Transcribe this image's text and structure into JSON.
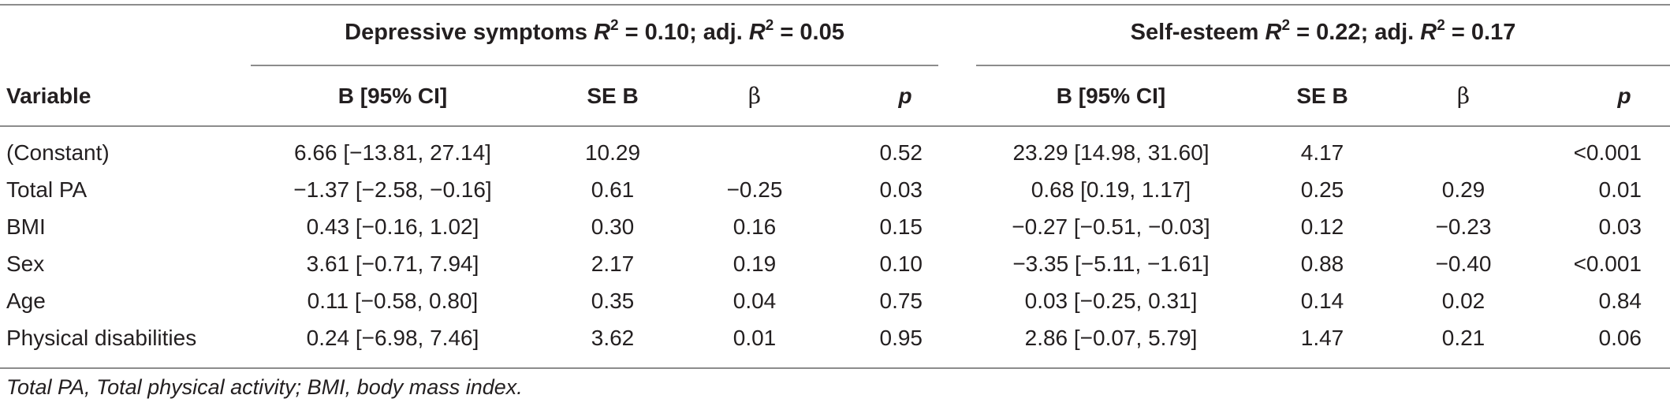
{
  "groups": {
    "depressive": {
      "label": "Depressive symptoms",
      "r2_symbol": "R",
      "r2_exp": "2",
      "r2_value": " = 0.10; adj. ",
      "adj_symbol": "R",
      "adj_exp": "2",
      "adj_value": " = 0.05"
    },
    "selfesteem": {
      "label": "Self-esteem",
      "r2_symbol": "R",
      "r2_exp": "2",
      "r2_value": " = 0.22; adj. ",
      "adj_symbol": "R",
      "adj_exp": "2",
      "adj_value": " = 0.17"
    }
  },
  "columns": {
    "variable": "Variable",
    "b_ci": "B [95% CI]",
    "se_b": "SE B",
    "beta": "β",
    "p": "p"
  },
  "rows": [
    {
      "variable": "(Constant)",
      "d_b": "6.66 [−13.81, 27.14]",
      "d_se": "10.29",
      "d_beta": "",
      "d_p": "0.52",
      "s_b": "23.29 [14.98, 31.60]",
      "s_se": "4.17",
      "s_beta": "",
      "s_p": "<0.001"
    },
    {
      "variable": "Total PA",
      "d_b": "−1.37 [−2.58, −0.16]",
      "d_se": "0.61",
      "d_beta": "−0.25",
      "d_p": "0.03",
      "s_b": "0.68 [0.19, 1.17]",
      "s_se": "0.25",
      "s_beta": "0.29",
      "s_p": "0.01"
    },
    {
      "variable": "BMI",
      "d_b": "0.43 [−0.16, 1.02]",
      "d_se": "0.30",
      "d_beta": "0.16",
      "d_p": "0.15",
      "s_b": "−0.27 [−0.51, −0.03]",
      "s_se": "0.12",
      "s_beta": "−0.23",
      "s_p": "0.03"
    },
    {
      "variable": "Sex",
      "d_b": "3.61 [−0.71, 7.94]",
      "d_se": "2.17",
      "d_beta": "0.19",
      "d_p": "0.10",
      "s_b": "−3.35 [−5.11, −1.61]",
      "s_se": "0.88",
      "s_beta": "−0.40",
      "s_p": "<0.001"
    },
    {
      "variable": "Age",
      "d_b": "0.11 [−0.58, 0.80]",
      "d_se": "0.35",
      "d_beta": "0.04",
      "d_p": "0.75",
      "s_b": "0.03 [−0.25, 0.31]",
      "s_se": "0.14",
      "s_beta": "0.02",
      "s_p": "0.84"
    },
    {
      "variable": "Physical disabilities",
      "d_b": "0.24 [−6.98, 7.46]",
      "d_se": "3.62",
      "d_beta": "0.01",
      "d_p": "0.95",
      "s_b": "2.86 [−0.07, 5.79]",
      "s_se": "1.47",
      "s_beta": "0.21",
      "s_p": "0.06"
    }
  ],
  "footnote": "Total PA, Total physical activity; BMI, body mass index."
}
